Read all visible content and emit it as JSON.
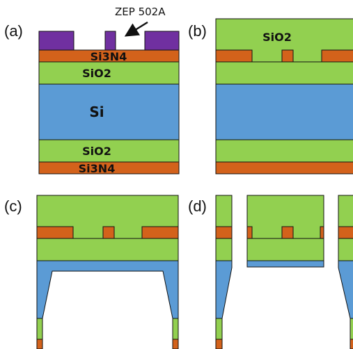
{
  "panels": [
    {
      "id": "a",
      "label": "(a)"
    },
    {
      "id": "b",
      "label": "(b)"
    },
    {
      "id": "c",
      "label": "(c)"
    },
    {
      "id": "d",
      "label": "(d)"
    }
  ],
  "layers": {
    "si3n4_top": "Si3N4",
    "sio2_top": "SiO2",
    "si": "Si",
    "sio2_bottom": "SiO2",
    "si3n4_bottom": "Si3N4",
    "sio2_cladding": "SiO2"
  },
  "callout": {
    "resist": "ZEP 502A"
  },
  "colors": {
    "resist": "#7030a0",
    "nitride": "#d3621b",
    "oxide": "#92d050",
    "silicon": "#5b9bd5",
    "outline": "#111111"
  }
}
